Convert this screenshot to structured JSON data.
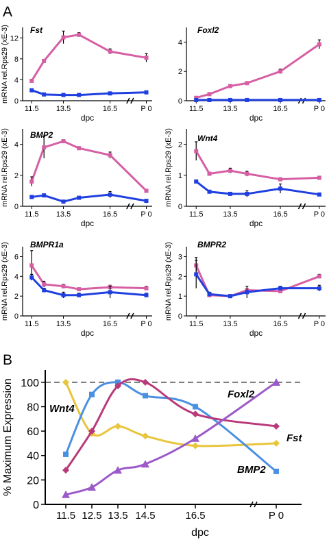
{
  "colors": {
    "pink": "#d65fa4",
    "blue": "#1f3fe0",
    "lightblue": "#4a90e2",
    "magenta": "#b83a7a",
    "yellow": "#e8c53a",
    "purple": "#9b59c9"
  },
  "chart_data": [
    {
      "type": "line",
      "panel": "A",
      "title": "Fst",
      "ylabel": "mRNA rel.Rps29 (xE-3)",
      "xlabel": "dpc",
      "categories": [
        "11.5",
        "12.5",
        "13.5",
        "14.5",
        "16.5",
        "P 0"
      ],
      "ylim": [
        0,
        14
      ],
      "yticks": [
        0,
        4,
        8,
        12
      ],
      "xtick_labels": [
        "11.5",
        "13.5",
        "16.5",
        "P 0"
      ],
      "series": [
        {
          "values": [
            3.8,
            7.6,
            12.1,
            12.6,
            9.4,
            8.2
          ],
          "errors": [
            0.3,
            0.3,
            1.2,
            0.4,
            0.5,
            0.8
          ]
        },
        {
          "values": [
            2.0,
            1.2,
            1.1,
            1.1,
            1.4,
            1.6
          ],
          "errors": [
            0.1,
            0.1,
            0.1,
            0.1,
            0.1,
            0.1
          ]
        }
      ]
    },
    {
      "type": "line",
      "panel": "A",
      "title": "Foxl2",
      "ylabel": "",
      "xlabel": "dpc",
      "categories": [
        "11.5",
        "12.5",
        "13.5",
        "14.5",
        "16.5",
        "P 0"
      ],
      "ylim": [
        0,
        5
      ],
      "yticks": [
        0,
        2,
        4
      ],
      "xtick_labels": [
        "11.5",
        "13.5",
        "16.5",
        "P 0"
      ],
      "series": [
        {
          "values": [
            0.2,
            0.45,
            1.0,
            1.2,
            2.0,
            3.85
          ],
          "errors": [
            0.05,
            0.05,
            0.1,
            0.1,
            0.15,
            0.3
          ]
        },
        {
          "values": [
            0.05,
            0.05,
            0.05,
            0.05,
            0.05,
            0.05
          ],
          "errors": [
            0,
            0,
            0,
            0,
            0,
            0
          ]
        }
      ]
    },
    {
      "type": "line",
      "panel": "A",
      "title": "BMP2",
      "ylabel": "mRNA rel.Rps29 (xE-3)",
      "xlabel": "dpc",
      "categories": [
        "11.5",
        "12.5",
        "13.5",
        "14.5",
        "16.5",
        "P 0"
      ],
      "ylim": [
        0,
        5
      ],
      "yticks": [
        0,
        2,
        4
      ],
      "xtick_labels": [
        "11.5",
        "13.5",
        "16.5",
        "P 0"
      ],
      "series": [
        {
          "values": [
            1.6,
            3.8,
            4.2,
            3.75,
            3.3,
            1.0
          ],
          "errors": [
            0.3,
            0.7,
            0.1,
            0.1,
            0.2,
            0.05
          ]
        },
        {
          "values": [
            0.6,
            0.7,
            0.3,
            0.55,
            0.75,
            0.35
          ],
          "errors": [
            0.05,
            0.1,
            0.05,
            0.05,
            0.2,
            0.05
          ]
        }
      ]
    },
    {
      "type": "line",
      "panel": "A",
      "title": "Wnt4",
      "ylabel": "mRNA rel.Rps29 (xE-3)",
      "xlabel": "dpc",
      "categories": [
        "11.5",
        "12.5",
        "13.5",
        "14.5",
        "16.5",
        "P 0"
      ],
      "ylim": [
        0,
        2.5
      ],
      "yticks": [
        0,
        1,
        2
      ],
      "xtick_labels": [
        "11.5",
        "13.5",
        "16.5",
        "P 0"
      ],
      "series": [
        {
          "values": [
            1.78,
            1.05,
            1.15,
            1.05,
            0.87,
            0.92
          ],
          "errors": [
            0.3,
            0.05,
            0.08,
            0.08,
            0.05,
            0.03
          ]
        },
        {
          "values": [
            0.8,
            0.47,
            0.4,
            0.4,
            0.57,
            0.38
          ],
          "errors": [
            0.05,
            0.03,
            0.03,
            0.1,
            0.15,
            0.03
          ]
        }
      ]
    },
    {
      "type": "line",
      "panel": "A",
      "title": "BMPR1a",
      "ylabel": "mRNA rel.Rps29 (xE-3)",
      "xlabel": "dpc",
      "categories": [
        "11.5",
        "12.5",
        "13.5",
        "14.5",
        "16.5",
        "P 0"
      ],
      "ylim": [
        0,
        7
      ],
      "yticks": [
        0,
        2,
        4,
        6
      ],
      "xtick_labels": [
        "11.5",
        "13.5",
        "16.5",
        "P 0"
      ],
      "series": [
        {
          "values": [
            5.1,
            3.2,
            3.0,
            2.7,
            2.9,
            2.8
          ],
          "errors": [
            1.5,
            0.3,
            0.2,
            0.1,
            0.2,
            0.2
          ]
        },
        {
          "values": [
            3.9,
            2.6,
            2.1,
            2.1,
            2.4,
            2.1
          ],
          "errors": [
            0.3,
            0.2,
            0.3,
            0.2,
            0.6,
            0.2
          ]
        }
      ]
    },
    {
      "type": "line",
      "panel": "A",
      "title": "BMPR2",
      "ylabel": "mRNA rel.Rps29 (xE-3)",
      "xlabel": "dpc",
      "categories": [
        "11.5",
        "12.5",
        "13.5",
        "14.5",
        "16.5",
        "P 0"
      ],
      "ylim": [
        0,
        3.5
      ],
      "yticks": [
        0,
        1,
        2,
        3
      ],
      "xtick_labels": [
        "11.5",
        "13.5",
        "16.5",
        "P 0"
      ],
      "series": [
        {
          "values": [
            2.55,
            1.05,
            1.0,
            1.3,
            1.25,
            2.0
          ],
          "errors": [
            0.4,
            0.05,
            0.05,
            0.05,
            0.05,
            0.1
          ]
        },
        {
          "values": [
            2.1,
            1.1,
            1.0,
            1.2,
            1.4,
            1.4
          ],
          "errors": [
            0.7,
            0.1,
            0.05,
            0.3,
            0.1,
            0.15
          ]
        }
      ]
    },
    {
      "type": "line",
      "panel": "B",
      "title": "",
      "ylabel": "% Maximum Expression",
      "xlabel": "dpc",
      "categories": [
        "11.5",
        "12.5",
        "13.5",
        "14.5",
        "16.5",
        "P 0"
      ],
      "ylim": [
        0,
        110
      ],
      "yticks": [
        0,
        20,
        40,
        60,
        80,
        100
      ],
      "xtick_labels": [
        "11.5",
        "12.5",
        "13.5",
        "14.5",
        "16.5",
        "P 0"
      ],
      "reference_line": 100,
      "series": [
        {
          "name": "Wnt4",
          "values": [
            100,
            58,
            64,
            56,
            48,
            50
          ]
        },
        {
          "name": "BMP2",
          "values": [
            41,
            90,
            100,
            89,
            80,
            27
          ]
        },
        {
          "name": "Fst",
          "values": [
            28,
            60,
            97,
            100,
            74,
            64
          ]
        },
        {
          "name": "Foxl2",
          "values": [
            8,
            14,
            28,
            33,
            54,
            100
          ]
        }
      ]
    }
  ],
  "panel_labels": {
    "a": "A",
    "b": "B"
  }
}
